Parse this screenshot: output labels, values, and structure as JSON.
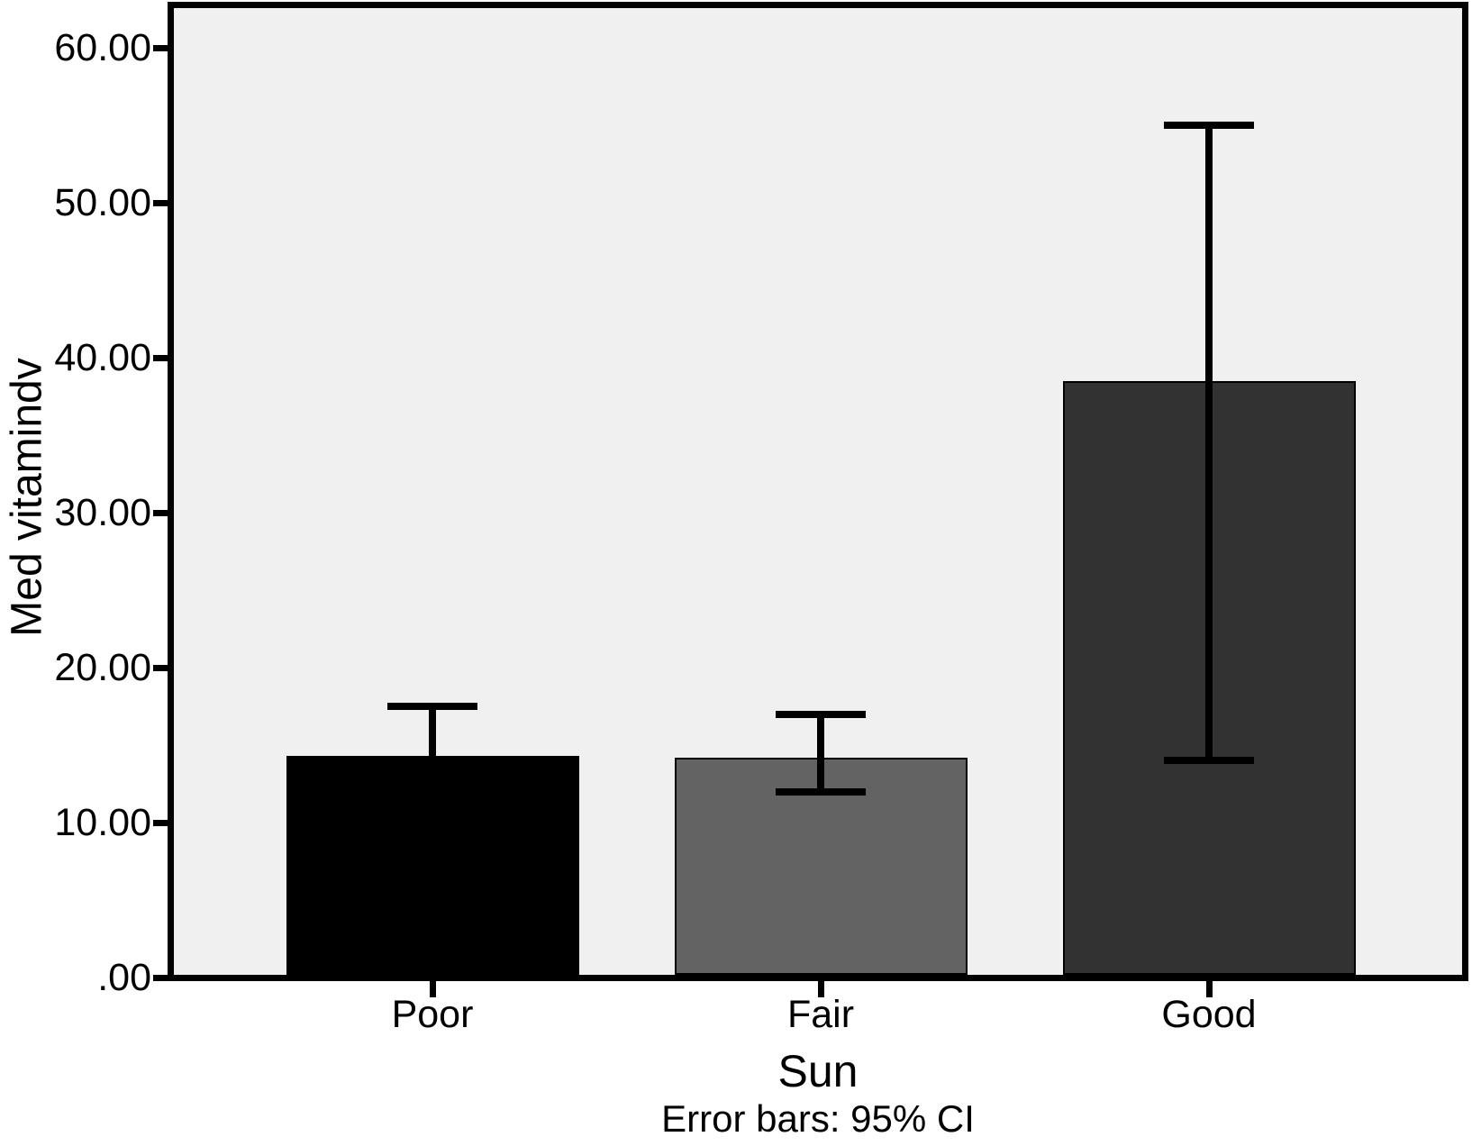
{
  "chart_data": {
    "type": "bar",
    "categories": [
      "Poor",
      "Fair",
      "Good"
    ],
    "values": [
      14.1,
      14.0,
      38.3
    ],
    "error_bars": {
      "style": "95% confidence interval whiskers with end caps",
      "upper": [
        17.5,
        17.0,
        55.0
      ],
      "lower": [
        null,
        12.0,
        14.0
      ]
    },
    "bar_colors": [
      "#000000",
      "#636363",
      "#323232"
    ],
    "xlabel": "Sun",
    "ylabel": "Med vitamindv",
    "caption": "Error bars: 95% CI",
    "yticks": {
      "labels": [
        "60.00",
        "50.00",
        "40.00",
        "30.00",
        "20.00",
        "10.00",
        ".00"
      ],
      "values": [
        60,
        50,
        40,
        30,
        20,
        10,
        0
      ]
    },
    "ylim": [
      0,
      62.8
    ],
    "grid": false,
    "legend": null,
    "plot_background": "#f0f0f0",
    "frame_color": "#000000"
  }
}
